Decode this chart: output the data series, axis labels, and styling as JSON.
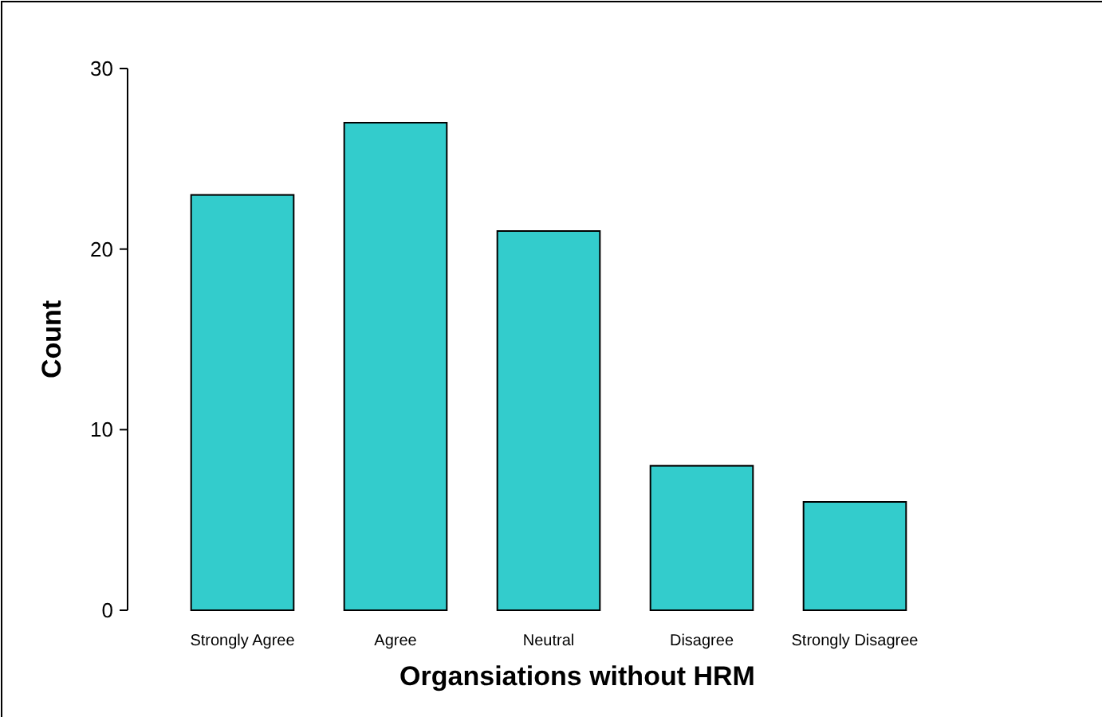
{
  "chart_data": {
    "type": "bar",
    "xlabel": "Organsiations without HRM",
    "ylabel": "Count",
    "categories": [
      "Strongly Agree",
      "Agree",
      "Neutral",
      "Disagree",
      "Strongly Disagree"
    ],
    "values": [
      23,
      27,
      21,
      8,
      6
    ],
    "color": "#33cccc",
    "ylim": [
      0,
      30
    ],
    "yticks": [
      0,
      10,
      20,
      30
    ],
    "grid": false
  }
}
